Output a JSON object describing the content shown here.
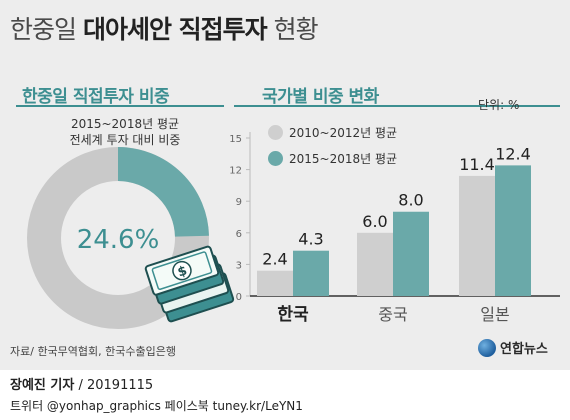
{
  "header": {
    "title_plain": "한중일",
    "title_bold": "대아세안 직접투자",
    "title_suffix": "현황"
  },
  "left_panel": {
    "heading": "한중일 직접투자 비중",
    "subtitle_line1": "2015~2018년 평균",
    "subtitle_line2": "전세계 투자 대비 비중",
    "value_label": "24.6%",
    "donut_share": 24.6
  },
  "right_panel": {
    "heading": "국가별 비중 변화",
    "unit": "단위: %"
  },
  "colors": {
    "series_2010": "#cfcfcf",
    "series_2015": "#6aa9a9",
    "donut_rest": "#c9c9c9",
    "donut_share": "#6aa9a9",
    "accent": "#3d8f91"
  },
  "chart_data": {
    "type": "bar",
    "categories": [
      "한국",
      "중국",
      "일본"
    ],
    "series": [
      {
        "name": "2010~2012년 평균",
        "values": [
          2.4,
          6.0,
          11.4
        ]
      },
      {
        "name": "2015~2018년 평균",
        "values": [
          4.3,
          8.0,
          12.4
        ]
      }
    ],
    "value_labels": [
      [
        "2.4",
        "6.0",
        "11.4"
      ],
      [
        "4.3",
        "8.0",
        "12.4"
      ]
    ],
    "yticks": [
      0,
      3,
      6,
      9,
      12,
      15
    ],
    "ytick_labels": [
      "0",
      "3",
      "6",
      "9",
      "12",
      "15"
    ],
    "ylim": [
      0,
      15
    ],
    "legend_position": "top-left",
    "grid": false
  },
  "footer": {
    "source": "자료/ 한국무역협회, 한국수출입은행",
    "logo_text": "연합뉴스",
    "reporter_name": "장예진 기자",
    "reporter_date": "/ 20191115",
    "social": "트위터 @yonhap_graphics  페이스북 tuney.kr/LeYN1"
  }
}
